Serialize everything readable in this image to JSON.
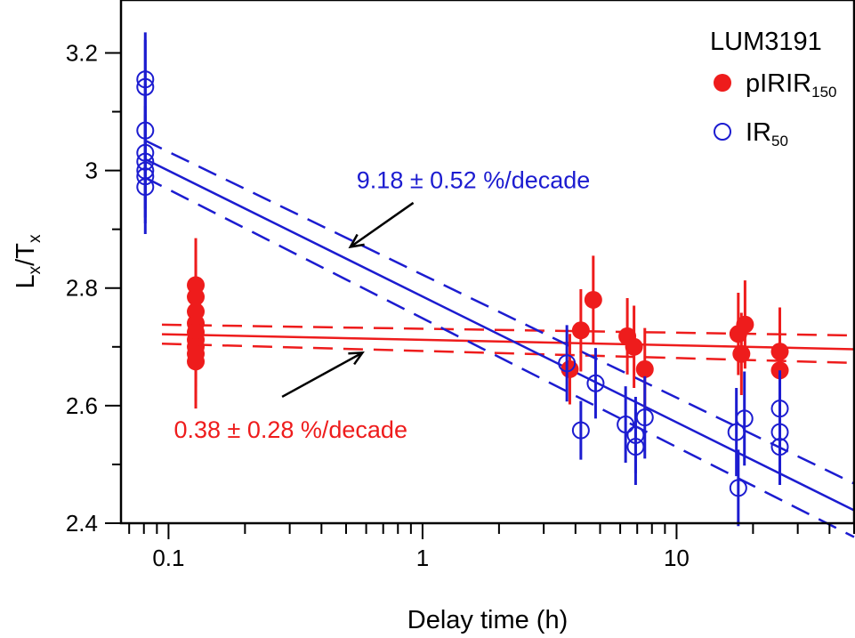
{
  "chart_data": {
    "type": "scatter",
    "title": "",
    "sample_label": "LUM3191",
    "xlabel": "Delay time (h)",
    "ylabel": {
      "base1": "L",
      "sub1": "x",
      "sep": "/",
      "base2": "T",
      "sub2": "x"
    },
    "x_scale": "log",
    "xlim": [
      0.065,
      50
    ],
    "ylim": [
      2.4,
      3.29
    ],
    "x_ticks": [
      0.1,
      1,
      10
    ],
    "x_tick_labels": [
      "0.1",
      "1",
      "10"
    ],
    "y_ticks": [
      2.4,
      2.6,
      2.8,
      3.0,
      3.2
    ],
    "y_tick_labels": [
      "2.4",
      "2.6",
      "2.8",
      "3",
      "3.2"
    ],
    "grid": false,
    "legend_position": "top-right",
    "series": [
      {
        "name_base": "pIRIR",
        "name_sub": "150",
        "marker": "filled-circle",
        "color": "#ee1c1c",
        "points": [
          {
            "x": 0.128,
            "y": 2.805,
            "err": 0.08
          },
          {
            "x": 0.128,
            "y": 2.785,
            "err": 0.08
          },
          {
            "x": 0.128,
            "y": 2.76,
            "err": 0.08
          },
          {
            "x": 0.128,
            "y": 2.74,
            "err": 0.08
          },
          {
            "x": 0.128,
            "y": 2.725,
            "err": 0.08
          },
          {
            "x": 0.128,
            "y": 2.712,
            "err": 0.08
          },
          {
            "x": 0.128,
            "y": 2.7,
            "err": 0.08
          },
          {
            "x": 0.128,
            "y": 2.688,
            "err": 0.08
          },
          {
            "x": 0.128,
            "y": 2.675,
            "err": 0.08
          },
          {
            "x": 3.8,
            "y": 2.662,
            "err": 0.06
          },
          {
            "x": 4.2,
            "y": 2.728,
            "err": 0.07
          },
          {
            "x": 4.7,
            "y": 2.78,
            "err": 0.075
          },
          {
            "x": 6.4,
            "y": 2.718,
            "err": 0.065
          },
          {
            "x": 6.8,
            "y": 2.7,
            "err": 0.07
          },
          {
            "x": 7.5,
            "y": 2.662,
            "err": 0.07
          },
          {
            "x": 17.5,
            "y": 2.722,
            "err": 0.07
          },
          {
            "x": 18.0,
            "y": 2.688,
            "err": 0.07
          },
          {
            "x": 18.6,
            "y": 2.738,
            "err": 0.075
          },
          {
            "x": 25.5,
            "y": 2.692,
            "err": 0.075
          },
          {
            "x": 25.5,
            "y": 2.66,
            "err": 0.07
          }
        ],
        "fit": {
          "label": "0.38 ± 0.28 %/decade",
          "y_at_xmin": 2.723,
          "y_at_xmax": 2.696,
          "band": 0.018
        }
      },
      {
        "name_base": "IR",
        "name_sub": "50",
        "marker": "open-circle",
        "color": "#1c1cd0",
        "points": [
          {
            "x": 0.081,
            "y": 3.155,
            "err": 0.08
          },
          {
            "x": 0.081,
            "y": 3.142,
            "err": 0.08
          },
          {
            "x": 0.081,
            "y": 3.068,
            "err": 0.08
          },
          {
            "x": 0.081,
            "y": 3.03,
            "err": 0.08
          },
          {
            "x": 0.081,
            "y": 3.015,
            "err": 0.08
          },
          {
            "x": 0.081,
            "y": 3.0,
            "err": 0.08
          },
          {
            "x": 0.081,
            "y": 2.99,
            "err": 0.08
          },
          {
            "x": 0.081,
            "y": 2.972,
            "err": 0.08
          },
          {
            "x": 3.7,
            "y": 2.672,
            "err": 0.065
          },
          {
            "x": 4.2,
            "y": 2.558,
            "err": 0.05
          },
          {
            "x": 4.8,
            "y": 2.638,
            "err": 0.06
          },
          {
            "x": 6.3,
            "y": 2.568,
            "err": 0.065
          },
          {
            "x": 6.9,
            "y": 2.55,
            "err": 0.065
          },
          {
            "x": 6.9,
            "y": 2.53,
            "err": 0.065
          },
          {
            "x": 7.5,
            "y": 2.58,
            "err": 0.07
          },
          {
            "x": 17.2,
            "y": 2.555,
            "err": 0.075
          },
          {
            "x": 17.5,
            "y": 2.46,
            "err": 0.065
          },
          {
            "x": 18.5,
            "y": 2.578,
            "err": 0.08
          },
          {
            "x": 25.5,
            "y": 2.595,
            "err": 0.065
          },
          {
            "x": 25.5,
            "y": 2.555,
            "err": 0.065
          },
          {
            "x": 25.5,
            "y": 2.53,
            "err": 0.065
          }
        ],
        "fit": {
          "label": "9.18 ± 0.52 %/decade",
          "y_at_xmin": 3.04,
          "y_at_xmax": 2.422,
          "band": 0.035
        }
      }
    ],
    "annotations": [
      {
        "series": 1,
        "text_anchor_x": 0.55,
        "text_anchor_y": 2.97,
        "arrow_from": [
          0.92,
          2.945
        ],
        "arrow_to": [
          0.52,
          2.87
        ]
      },
      {
        "series": 0,
        "text_anchor_x": 0.105,
        "text_anchor_y": 2.545,
        "arrow_from": [
          0.28,
          2.615
        ],
        "arrow_to": [
          0.58,
          2.69
        ]
      }
    ]
  }
}
